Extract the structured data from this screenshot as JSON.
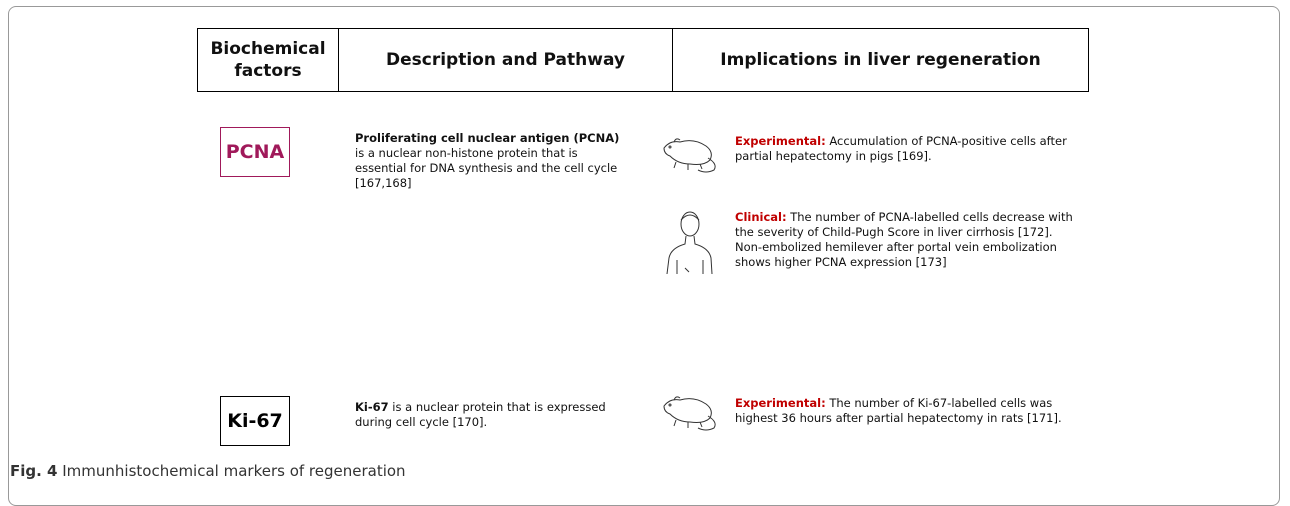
{
  "header": {
    "columns": [
      "Biochemical factors",
      "Description and Pathway",
      "Implications in liver regeneration"
    ]
  },
  "rows": [
    {
      "marker": "PCNA",
      "description": {
        "bold": "Proliferating cell nuclear antigen (PCNA)",
        "text": " is a nuclear non-histone protein that is essential for DNA synthesis and the cell cycle [167,168]"
      },
      "implications": [
        {
          "label": "Experimental:",
          "text": [
            " Accumulation of PCNA-positive cells after partial hepatectomy in pigs [169]."
          ]
        },
        {
          "label": "Clinical:",
          "text": [
            " The number of PCNA-labelled cells decrease with the severity of Child-Pugh Score in liver cirrhosis [172].",
            "Non-embolized hemilever after portal vein embolization shows higher  PCNA expression [173]"
          ]
        }
      ]
    },
    {
      "marker": "Ki-67",
      "description": {
        "bold": "Ki-67",
        "text": " is a nuclear protein that is expressed during cell cycle [170]."
      },
      "implications": [
        {
          "label": "Experimental:",
          "text": [
            " The number of Ki-67-labelled cells was highest 36 hours after partial hepatectomy in rats [171]."
          ]
        }
      ]
    }
  ],
  "caption": {
    "label": "Fig. 4",
    "text": " Immunhistochemical markers of regeneration"
  }
}
